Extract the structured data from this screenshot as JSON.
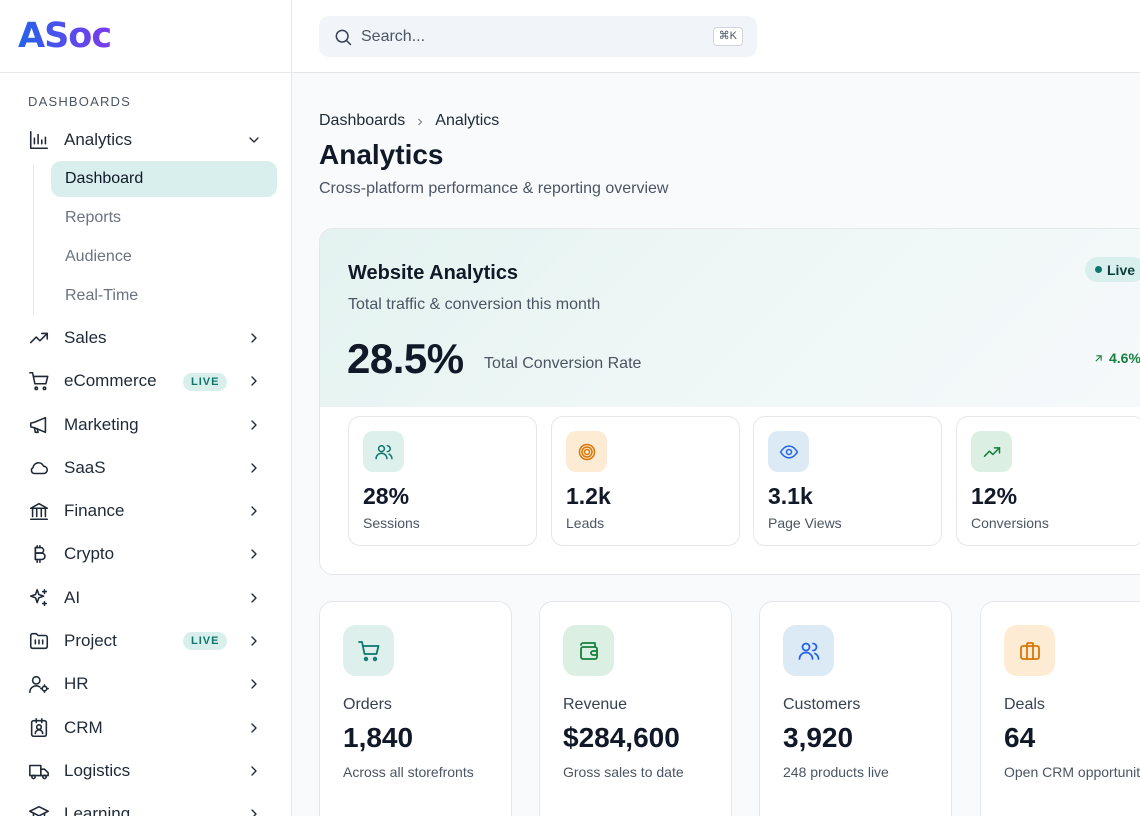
{
  "brand": {
    "logo_text": "ASoc"
  },
  "search": {
    "placeholder": "Search...",
    "shortcut": "⌘K"
  },
  "sidebar": {
    "section_label": "DASHBOARDS",
    "analytics": {
      "label": "Analytics",
      "icon": "bar-chart-icon",
      "expanded": true,
      "children": [
        {
          "label": "Dashboard",
          "active": true
        },
        {
          "label": "Reports"
        },
        {
          "label": "Audience"
        },
        {
          "label": "Real-Time"
        }
      ]
    },
    "items": [
      {
        "label": "Sales",
        "icon": "trending-up-icon"
      },
      {
        "label": "eCommerce",
        "icon": "cart-icon",
        "badge": "LIVE"
      },
      {
        "label": "Marketing",
        "icon": "megaphone-icon"
      },
      {
        "label": "SaaS",
        "icon": "cloud-icon"
      },
      {
        "label": "Finance",
        "icon": "bank-icon"
      },
      {
        "label": "Crypto",
        "icon": "bitcoin-icon"
      },
      {
        "label": "AI",
        "icon": "sparkles-icon"
      },
      {
        "label": "Project",
        "icon": "calendar-folder-icon",
        "badge": "LIVE"
      },
      {
        "label": "HR",
        "icon": "user-cog-icon"
      },
      {
        "label": "CRM",
        "icon": "id-badge-icon"
      },
      {
        "label": "Logistics",
        "icon": "truck-icon"
      },
      {
        "label": "Learning",
        "icon": "graduation-cap-icon"
      }
    ]
  },
  "breadcrumb": {
    "items": [
      "Dashboards",
      "Analytics"
    ]
  },
  "page": {
    "title": "Analytics",
    "subtitle": "Cross-platform performance & reporting overview"
  },
  "website_analytics": {
    "title": "Website Analytics",
    "subtitle": "Total traffic & conversion this month",
    "live_label": "Live",
    "big_value": "28.5%",
    "big_label": "Total Conversion Rate",
    "trend_value": "4.6%",
    "metrics": [
      {
        "value": "28%",
        "label": "Sessions",
        "icon": "users-icon",
        "color": "#0f766e",
        "bg": "#ddf0ec"
      },
      {
        "value": "1.2k",
        "label": "Leads",
        "icon": "target-icon",
        "color": "#d97706",
        "bg": "#fdebd3"
      },
      {
        "value": "3.1k",
        "label": "Page Views",
        "icon": "eye-icon",
        "color": "#2563eb",
        "bg": "#dbeaf5"
      },
      {
        "value": "12%",
        "label": "Conversions",
        "icon": "trend-up-icon",
        "color": "#15803d",
        "bg": "#dcefe3"
      }
    ]
  },
  "stats": [
    {
      "label": "Orders",
      "value": "1,840",
      "desc": "Across all storefronts",
      "icon": "cart-icon",
      "color": "#0f766e",
      "bg": "#ddf0ec"
    },
    {
      "label": "Revenue",
      "value": "$284,600",
      "desc": "Gross sales to date",
      "icon": "wallet-icon",
      "color": "#15803d",
      "bg": "#dcefe3"
    },
    {
      "label": "Customers",
      "value": "3,920",
      "desc": "248 products live",
      "icon": "users-icon",
      "color": "#2563eb",
      "bg": "#dbeaf5"
    },
    {
      "label": "Deals",
      "value": "64",
      "desc": "Open CRM opportunities",
      "icon": "briefcase-icon",
      "color": "#d97706",
      "bg": "#fdebd3"
    }
  ]
}
